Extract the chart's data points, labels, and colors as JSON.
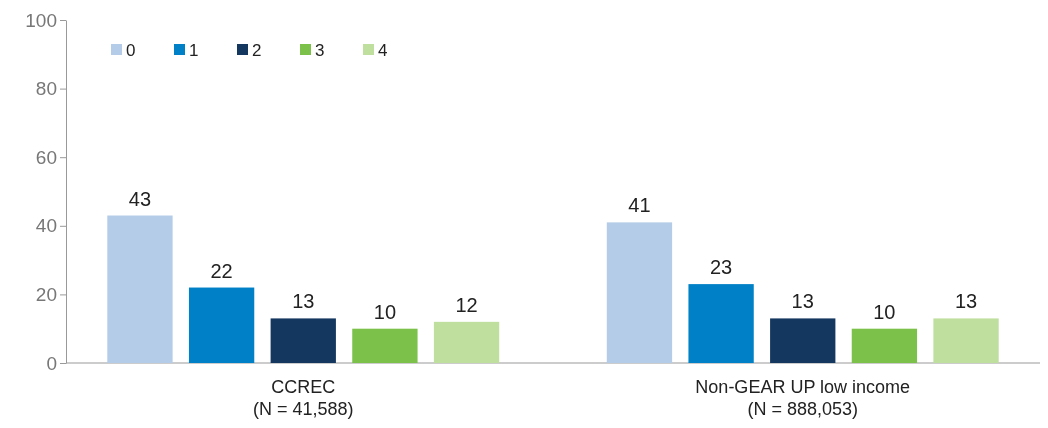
{
  "chart_data": {
    "type": "bar",
    "categories": [
      "CCREC\n(N = 41,588)",
      "Non-GEAR UP low income\n(N = 888,053)"
    ],
    "series": [
      {
        "name": "0",
        "color": "#b4cce8",
        "values": [
          43,
          41
        ]
      },
      {
        "name": "1",
        "color": "#0080c6",
        "values": [
          22,
          23
        ]
      },
      {
        "name": "2",
        "color": "#14375f",
        "values": [
          13,
          13
        ]
      },
      {
        "name": "3",
        "color": "#7cc24a",
        "values": [
          10,
          10
        ]
      },
      {
        "name": "4",
        "color": "#bfdf9f",
        "values": [
          12,
          13
        ]
      }
    ],
    "ylim": [
      0,
      100
    ],
    "yticks": [
      0,
      20,
      40,
      60,
      80,
      100
    ],
    "data_labels": true,
    "legend": "top left",
    "grid": false
  }
}
